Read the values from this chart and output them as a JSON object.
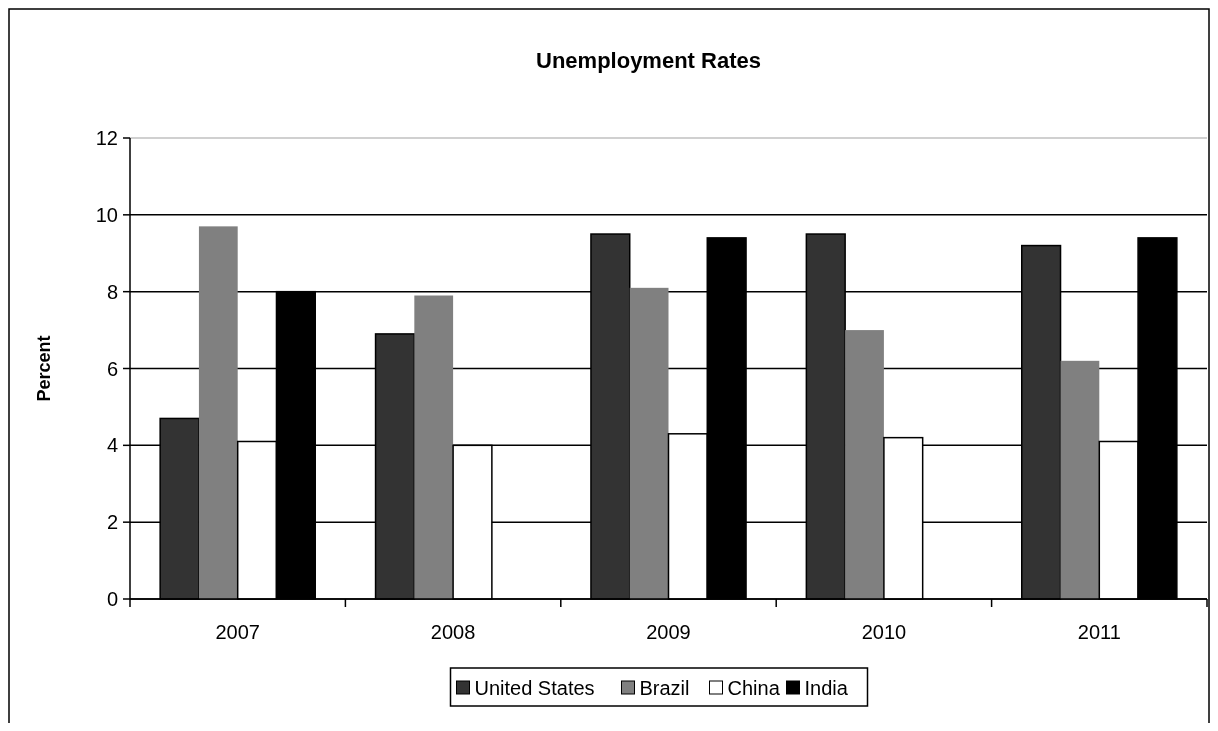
{
  "chart_data": {
    "type": "bar",
    "title": "Unemployment Rates",
    "ylabel": "Percent",
    "categories": [
      "2007",
      "2008",
      "2009",
      "2010",
      "2011"
    ],
    "series": [
      {
        "name": "United States",
        "color": "#333333",
        "values": [
          4.7,
          6.9,
          9.5,
          9.5,
          9.2
        ]
      },
      {
        "name": "Brazil",
        "color": "#808080",
        "values": [
          9.7,
          7.9,
          8.1,
          7.0,
          6.2
        ]
      },
      {
        "name": "China",
        "color": "#ffffff",
        "values": [
          4.1,
          4.0,
          4.3,
          4.2,
          4.1
        ]
      },
      {
        "name": "India",
        "color": "#000000",
        "values": [
          8.0,
          null,
          9.4,
          null,
          9.4
        ]
      }
    ],
    "ylim": [
      0,
      12
    ],
    "yticks": [
      0,
      2,
      4,
      6,
      8,
      10,
      12
    ],
    "grid": "y",
    "legend": "bottom"
  }
}
